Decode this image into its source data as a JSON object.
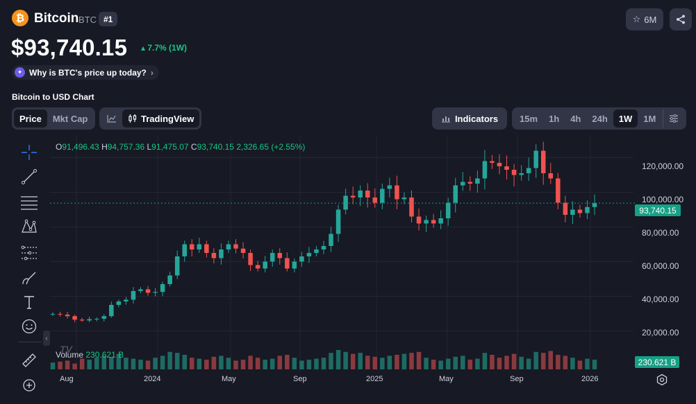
{
  "header": {
    "coin_logo_glyph": "₿",
    "name": "Bitcoin",
    "symbol": "BTC",
    "rank": "#1",
    "price": "$93,740.15",
    "change": "7.7% (1W)",
    "why_label": "Why is BTC's price up today?",
    "watchlist_count": "6M"
  },
  "chart_title": "Bitcoin to USD Chart",
  "toolbar": {
    "price_tab": "Price",
    "mktcap_tab": "Mkt Cap",
    "tradingview_label": "TradingView",
    "indicators_label": "Indicators",
    "ranges": [
      "15m",
      "1h",
      "4h",
      "24h",
      "1W",
      "1M"
    ],
    "active_range": "1W"
  },
  "ohlc": {
    "o_label": "O",
    "o": "91,496.43",
    "h_label": "H",
    "h": "94,757.36",
    "l_label": "L",
    "l": "91,475.07",
    "c_label": "C",
    "c": "93,740.15",
    "change": "2,326.65 (+2.55%)"
  },
  "volume": {
    "label": "Volume",
    "value": "230.621 B"
  },
  "price_tag": "93,740.15",
  "volume_tag": "230.621 B",
  "colors": {
    "up": "#26a69a",
    "down": "#ef5350",
    "accent": "#16c784",
    "background": "#171924"
  },
  "icons": [
    "crosshair-icon",
    "trend-line-icon",
    "fib-icon",
    "pattern-icon",
    "measure-lines-icon",
    "brush-icon",
    "text-icon",
    "emoji-icon",
    "ruler-icon",
    "zoom-in-icon",
    "star-icon",
    "share-icon",
    "settings-icon"
  ],
  "chart_data": {
    "type": "candlestick",
    "interval": "1W",
    "y_ticks": [
      "120,000.00",
      "100,000.00",
      "80,000.00",
      "60,000.00",
      "40,000.00",
      "20,000.00"
    ],
    "x_ticks": [
      "Aug",
      "2024",
      "May",
      "Sep",
      "2025",
      "May",
      "Sep",
      "2026"
    ],
    "ylim": [
      13000,
      133000
    ],
    "last_price": 93740.15,
    "close_path": [
      29800,
      29400,
      28500,
      26500,
      26000,
      26800,
      27000,
      28500,
      35000,
      37000,
      38000,
      43000,
      44000,
      42000,
      42500,
      47000,
      52000,
      63000,
      70000,
      67000,
      70000,
      65000,
      62000,
      67000,
      70000,
      67500,
      65000,
      58000,
      56000,
      60000,
      65000,
      62000,
      56000,
      60000,
      63000,
      65000,
      67000,
      69000,
      76000,
      90000,
      98000,
      97000,
      101000,
      97000,
      94000,
      102000,
      104000,
      96000,
      97000,
      86000,
      82000,
      84000,
      82000,
      85000,
      94000,
      104000,
      106000,
      105000,
      108000,
      118000,
      117000,
      115000,
      113000,
      110000,
      111000,
      114000,
      124000,
      111000,
      108000,
      94000,
      87000,
      90000,
      88000,
      91496,
      93740
    ],
    "volume_rel": [
      0.35,
      0.4,
      0.45,
      0.3,
      0.55,
      0.5,
      0.6,
      0.7,
      0.65,
      0.8,
      0.6,
      0.55,
      0.5,
      0.45,
      0.6,
      0.7,
      0.9,
      0.85,
      0.75,
      0.6,
      0.55,
      0.5,
      0.65,
      0.7,
      0.6,
      0.45,
      0.5,
      0.7,
      0.6,
      0.5,
      0.55,
      0.7,
      0.75,
      0.6,
      0.45,
      0.5,
      0.55,
      0.6,
      0.85,
      1.0,
      0.9,
      0.8,
      0.85,
      0.7,
      0.65,
      0.6,
      0.7,
      0.75,
      0.8,
      0.85,
      0.9,
      0.6,
      0.5,
      0.45,
      0.55,
      0.65,
      0.7,
      0.5,
      0.55,
      0.85,
      0.75,
      0.6,
      0.7,
      0.8,
      0.65,
      0.55,
      0.9,
      0.85,
      0.95,
      0.75,
      0.7,
      0.6,
      0.45,
      0.55,
      0.5
    ]
  }
}
